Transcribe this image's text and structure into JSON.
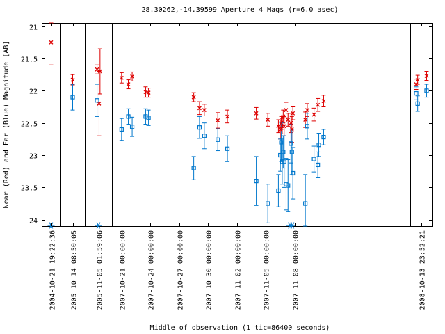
{
  "chart_data": {
    "type": "scatter",
    "title": "28.30262,-14.39599   Aperture 4 Mags (r=6.0 asec)",
    "xlabel": "Middle of observation (1 tic=86400 seconds)",
    "ylabel": "Near (Red) and Far (Blue) Magnitude [AB]",
    "ylim": [
      24.1,
      20.95
    ],
    "y_inverted": true,
    "yticks": [
      21,
      21.5,
      22,
      22.5,
      23,
      23.5,
      24
    ],
    "grid": false,
    "legend": "none",
    "panels": [
      {
        "xrange": [
          -0.6,
          0.6
        ],
        "ticks": [
          {
            "v": 0,
            "label": "2004-10-21 19:22:36"
          }
        ]
      },
      {
        "xrange": [
          -1.0,
          1.0
        ],
        "ticks": [
          {
            "v": 0,
            "label": "2005-10-14 08:50:05"
          }
        ]
      },
      {
        "xrange": [
          -1.0,
          1.0
        ],
        "ticks": [
          {
            "v": 0,
            "label": "2005-11-05 01:59:06"
          }
        ]
      },
      {
        "xrange": [
          0,
          31
        ],
        "ticks": [
          {
            "v": 1,
            "label": "2007-10-21 00:00:00"
          },
          {
            "v": 4,
            "label": "2007-10-24 00:00:00"
          },
          {
            "v": 7,
            "label": "2007-10-27 00:00:00"
          },
          {
            "v": 10,
            "label": "2007-10-30 00:00:00"
          },
          {
            "v": 13,
            "label": "2007-11-02 00:00:00"
          },
          {
            "v": 16,
            "label": "2007-11-05 00:00:00"
          },
          {
            "v": 19,
            "label": "2007-11-08 00:00:00"
          }
        ]
      },
      {
        "xrange": [
          -0.75,
          0.75
        ],
        "ticks": [
          {
            "v": 0,
            "label": "2008-10-13 23:52:21"
          }
        ]
      }
    ],
    "colors": {
      "near": "#dd0000",
      "far": "#0077cc",
      "limit": "#0077cc"
    },
    "series": [
      {
        "name": "Near (Red)",
        "marker": "x",
        "points": [
          {
            "p": 0,
            "x": 0,
            "y": 21.25,
            "e": 0.35
          },
          {
            "p": 1,
            "x": 0,
            "y": 21.83,
            "e": 0.08
          },
          {
            "p": 2,
            "x": -0.1,
            "y": 21.67,
            "e": 0.07
          },
          {
            "p": 2,
            "x": 0.05,
            "y": 22.2,
            "e": 0.5
          },
          {
            "p": 2,
            "x": 0.12,
            "y": 21.7,
            "e": 0.35
          },
          {
            "p": 3,
            "x": 1.0,
            "y": 21.8,
            "e": 0.08
          },
          {
            "p": 3,
            "x": 1.7,
            "y": 21.9,
            "e": 0.07
          },
          {
            "p": 3,
            "x": 2.1,
            "y": 21.78,
            "e": 0.07
          },
          {
            "p": 3,
            "x": 3.5,
            "y": 22.02,
            "e": 0.08
          },
          {
            "p": 3,
            "x": 3.8,
            "y": 22.03,
            "e": 0.07
          },
          {
            "p": 3,
            "x": 8.5,
            "y": 22.1,
            "e": 0.07
          },
          {
            "p": 3,
            "x": 9.1,
            "y": 22.27,
            "e": 0.1
          },
          {
            "p": 3,
            "x": 9.6,
            "y": 22.3,
            "e": 0.09
          },
          {
            "p": 3,
            "x": 11.0,
            "y": 22.46,
            "e": 0.12
          },
          {
            "p": 3,
            "x": 12.0,
            "y": 22.4,
            "e": 0.1
          },
          {
            "p": 3,
            "x": 15.0,
            "y": 22.35,
            "e": 0.09
          },
          {
            "p": 3,
            "x": 16.2,
            "y": 22.45,
            "e": 0.1
          },
          {
            "p": 3,
            "x": 17.3,
            "y": 22.55,
            "e": 0.1
          },
          {
            "p": 3,
            "x": 17.5,
            "y": 22.6,
            "e": 0.15
          },
          {
            "p": 3,
            "x": 17.6,
            "y": 22.5,
            "e": 0.1
          },
          {
            "p": 3,
            "x": 17.7,
            "y": 22.55,
            "e": 0.12
          },
          {
            "p": 3,
            "x": 17.8,
            "y": 22.4,
            "e": 0.1
          },
          {
            "p": 3,
            "x": 17.9,
            "y": 22.55,
            "e": 0.15
          },
          {
            "p": 3,
            "x": 18.1,
            "y": 22.3,
            "e": 0.12
          },
          {
            "p": 3,
            "x": 18.3,
            "y": 22.45,
            "e": 0.1
          },
          {
            "p": 3,
            "x": 18.6,
            "y": 22.5,
            "e": 0.15
          },
          {
            "p": 3,
            "x": 18.7,
            "y": 22.6,
            "e": 0.2
          },
          {
            "p": 3,
            "x": 18.8,
            "y": 22.35,
            "e": 0.1
          },
          {
            "p": 3,
            "x": 20.1,
            "y": 22.45,
            "e": 0.12
          },
          {
            "p": 3,
            "x": 20.3,
            "y": 22.3,
            "e": 0.1
          },
          {
            "p": 3,
            "x": 21.0,
            "y": 22.37,
            "e": 0.1
          },
          {
            "p": 3,
            "x": 21.4,
            "y": 22.22,
            "e": 0.1
          },
          {
            "p": 3,
            "x": 22.0,
            "y": 22.16,
            "e": 0.09
          },
          {
            "p": 4,
            "x": -0.35,
            "y": 21.9,
            "e": 0.08
          },
          {
            "p": 4,
            "x": -0.25,
            "y": 21.83,
            "e": 0.07
          },
          {
            "p": 4,
            "x": 0.35,
            "y": 21.77,
            "e": 0.07
          }
        ]
      },
      {
        "name": "Far (Blue)",
        "marker": "square",
        "points": [
          {
            "p": 1,
            "x": 0,
            "y": 22.1,
            "e": 0.2
          },
          {
            "p": 2,
            "x": -0.1,
            "y": 22.15,
            "e": 0.25
          },
          {
            "p": 3,
            "x": 1.0,
            "y": 22.6,
            "e": 0.17
          },
          {
            "p": 3,
            "x": 1.7,
            "y": 22.4,
            "e": 0.12
          },
          {
            "p": 3,
            "x": 2.1,
            "y": 22.56,
            "e": 0.15
          },
          {
            "p": 3,
            "x": 3.5,
            "y": 22.4,
            "e": 0.12
          },
          {
            "p": 3,
            "x": 3.8,
            "y": 22.42,
            "e": 0.12
          },
          {
            "p": 3,
            "x": 8.5,
            "y": 23.2,
            "e": 0.18
          },
          {
            "p": 3,
            "x": 9.1,
            "y": 22.57,
            "e": 0.17
          },
          {
            "p": 3,
            "x": 9.6,
            "y": 22.7,
            "e": 0.2
          },
          {
            "p": 3,
            "x": 11.0,
            "y": 22.76,
            "e": 0.17
          },
          {
            "p": 3,
            "x": 12.0,
            "y": 22.9,
            "e": 0.2
          },
          {
            "p": 3,
            "x": 15.0,
            "y": 23.4,
            "e": 0.38
          },
          {
            "p": 3,
            "x": 16.2,
            "y": 23.75,
            "e": 0.3
          },
          {
            "p": 3,
            "x": 17.3,
            "y": 23.55,
            "e": 0.25
          },
          {
            "p": 3,
            "x": 17.5,
            "y": 23.0,
            "e": 0.25
          },
          {
            "p": 3,
            "x": 17.6,
            "y": 22.8,
            "e": 0.3
          },
          {
            "p": 3,
            "x": 17.7,
            "y": 23.1,
            "e": 0.35
          },
          {
            "p": 3,
            "x": 17.8,
            "y": 22.95,
            "e": 0.25
          },
          {
            "p": 3,
            "x": 17.9,
            "y": 23.1,
            "e": 0.4
          },
          {
            "p": 3,
            "x": 18.1,
            "y": 23.45,
            "e": 0.4
          },
          {
            "p": 3,
            "x": 18.3,
            "y": 23.47,
            "e": 0.4
          },
          {
            "p": 3,
            "x": 18.6,
            "y": 22.82,
            "e": 0.3
          },
          {
            "p": 3,
            "x": 18.7,
            "y": 22.95,
            "e": 0.35
          },
          {
            "p": 3,
            "x": 18.8,
            "y": 23.28,
            "e": 0.4
          },
          {
            "p": 3,
            "x": 20.1,
            "y": 23.75,
            "e": 0.45
          },
          {
            "p": 3,
            "x": 20.3,
            "y": 22.55,
            "e": 0.2
          },
          {
            "p": 3,
            "x": 21.0,
            "y": 23.06,
            "e": 0.2
          },
          {
            "p": 3,
            "x": 21.4,
            "y": 23.15,
            "e": 0.2
          },
          {
            "p": 3,
            "x": 21.5,
            "y": 22.84,
            "e": 0.18
          },
          {
            "p": 3,
            "x": 22.0,
            "y": 22.72,
            "e": 0.12
          },
          {
            "p": 4,
            "x": -0.35,
            "y": 22.04,
            "e": 0.1
          },
          {
            "p": 4,
            "x": -0.25,
            "y": 22.2,
            "e": 0.12
          },
          {
            "p": 4,
            "x": 0.35,
            "y": 22.0,
            "e": 0.1
          }
        ]
      }
    ],
    "limits": [
      {
        "p": 0,
        "x": 0
      },
      {
        "p": 2,
        "x": 0
      },
      {
        "p": 3,
        "x": 18.5
      },
      {
        "p": 3,
        "x": 18.75
      }
    ]
  }
}
